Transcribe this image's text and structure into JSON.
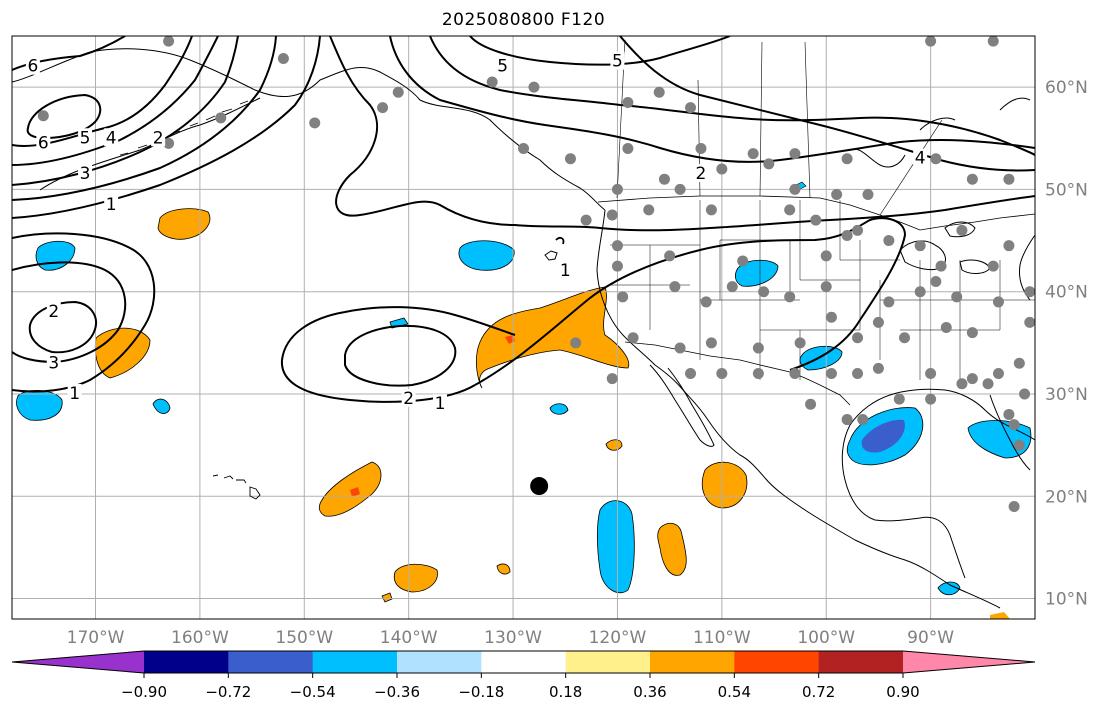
{
  "title": "2025080800 F120",
  "colors": {
    "land_line": "#000000",
    "grid_line": "#b0b0b0",
    "contour_line": "#000000",
    "station_dot": "#808080",
    "marker": "#000000"
  },
  "map": {
    "lon_range": [
      -178,
      -80
    ],
    "lat_range": [
      8,
      65
    ],
    "lon_ticks": [
      {
        "value": -170,
        "label": "170°W"
      },
      {
        "value": -160,
        "label": "160°W"
      },
      {
        "value": -150,
        "label": "150°W"
      },
      {
        "value": -140,
        "label": "140°W"
      },
      {
        "value": -130,
        "label": "130°W"
      },
      {
        "value": -120,
        "label": "120°W"
      },
      {
        "value": -110,
        "label": "110°W"
      },
      {
        "value": -100,
        "label": "100°W"
      },
      {
        "value": -90,
        "label": "90°W"
      }
    ],
    "lat_ticks": [
      {
        "value": 10,
        "label": "10°N"
      },
      {
        "value": 20,
        "label": "20°N"
      },
      {
        "value": 30,
        "label": "30°N"
      },
      {
        "value": 40,
        "label": "40°N"
      },
      {
        "value": 50,
        "label": "50°N"
      },
      {
        "value": 60,
        "label": "60°N"
      }
    ],
    "contour_labels": [
      {
        "text": "6",
        "lon": -176,
        "lat": 62.0
      },
      {
        "text": "6",
        "lon": -175,
        "lat": 54.5
      },
      {
        "text": "5",
        "lon": -171,
        "lat": 55.0
      },
      {
        "text": "4",
        "lon": -168.5,
        "lat": 55.0
      },
      {
        "text": "3",
        "lon": -171,
        "lat": 51.5
      },
      {
        "text": "2",
        "lon": -164,
        "lat": 55.0
      },
      {
        "text": "1",
        "lon": -168.5,
        "lat": 48.5
      },
      {
        "text": "2",
        "lon": -174,
        "lat": 38.0
      },
      {
        "text": "3",
        "lon": -174,
        "lat": 33.0
      },
      {
        "text": "1",
        "lon": -172,
        "lat": 30.0
      },
      {
        "text": "2",
        "lon": -140,
        "lat": 29.5
      },
      {
        "text": "1",
        "lon": -137,
        "lat": 29.0
      },
      {
        "text": "1",
        "lon": -125,
        "lat": 42.0
      },
      {
        "text": "5",
        "lon": -120,
        "lat": 62.5
      },
      {
        "text": "5",
        "lon": -131,
        "lat": 62.0
      },
      {
        "text": "2",
        "lon": -112,
        "lat": 51.5
      },
      {
        "text": "4",
        "lon": -91,
        "lat": 53.0
      }
    ],
    "marker": {
      "lon": -127.5,
      "lat": 21.0
    },
    "station_points": [
      [
        -163,
        64.5
      ],
      [
        -152,
        62.8
      ],
      [
        -141,
        59.5
      ],
      [
        -132,
        60.5
      ],
      [
        -119,
        58.5
      ],
      [
        -128,
        60
      ],
      [
        -116,
        59.5
      ],
      [
        -90,
        64.5
      ],
      [
        -84,
        64.5
      ],
      [
        -113,
        58
      ],
      [
        -142.5,
        58
      ],
      [
        -158,
        57
      ],
      [
        -149,
        56.5
      ],
      [
        -175,
        57.2
      ],
      [
        -163,
        54.5
      ],
      [
        -129,
        54
      ],
      [
        -119,
        54
      ],
      [
        -112,
        54
      ],
      [
        -107,
        53.5
      ],
      [
        -103,
        53.5
      ],
      [
        -98,
        53
      ],
      [
        -89.5,
        53
      ],
      [
        -105.5,
        52.5
      ],
      [
        -110,
        52
      ],
      [
        -115.5,
        51
      ],
      [
        -124.5,
        53
      ],
      [
        -103,
        50
      ],
      [
        -99,
        49.5
      ],
      [
        -96,
        49.5
      ],
      [
        -120,
        50
      ],
      [
        -114,
        50
      ],
      [
        -117,
        48
      ],
      [
        -111,
        48
      ],
      [
        -101,
        47
      ],
      [
        -97,
        46
      ],
      [
        -86,
        51
      ],
      [
        -82.5,
        51
      ],
      [
        -123,
        47
      ],
      [
        -120.5,
        47.5
      ],
      [
        -103.5,
        48
      ],
      [
        -98,
        45.5
      ],
      [
        -87,
        46
      ],
      [
        -91,
        44.5
      ],
      [
        -94,
        45
      ],
      [
        -120,
        44.5
      ],
      [
        -120,
        42.5
      ],
      [
        -115,
        43.5
      ],
      [
        -108,
        43
      ],
      [
        -100,
        43.5
      ],
      [
        -89,
        42.5
      ],
      [
        -84,
        42.5
      ],
      [
        -82.5,
        44.5
      ],
      [
        -119.5,
        39.5
      ],
      [
        -114.5,
        40.5
      ],
      [
        -111.5,
        39
      ],
      [
        -109,
        40.5
      ],
      [
        -106,
        40
      ],
      [
        -103.5,
        39.5
      ],
      [
        -100,
        40.5
      ],
      [
        -94,
        39
      ],
      [
        -91,
        40
      ],
      [
        -87.5,
        39.5
      ],
      [
        -83.5,
        39
      ],
      [
        -80.5,
        40
      ],
      [
        -89.5,
        41
      ],
      [
        -124,
        35
      ],
      [
        -118.5,
        35.5
      ],
      [
        -114,
        34.5
      ],
      [
        -111,
        35
      ],
      [
        -106.5,
        34.5
      ],
      [
        -102.5,
        35
      ],
      [
        -99.5,
        37.5
      ],
      [
        -97,
        35.5
      ],
      [
        -95,
        37
      ],
      [
        -92.5,
        35.5
      ],
      [
        -88.5,
        36.5
      ],
      [
        -86,
        36
      ],
      [
        -80.5,
        37
      ],
      [
        -120.5,
        31.5
      ],
      [
        -113,
        32
      ],
      [
        -110,
        32
      ],
      [
        -106.5,
        32
      ],
      [
        -103,
        32
      ],
      [
        -99.5,
        32
      ],
      [
        -97,
        32
      ],
      [
        -95,
        32.5
      ],
      [
        -90,
        32
      ],
      [
        -87,
        31
      ],
      [
        -84.5,
        31
      ],
      [
        -81,
        30
      ],
      [
        -86,
        31.5
      ],
      [
        -83.5,
        32
      ],
      [
        -81.5,
        33
      ],
      [
        -101.5,
        29
      ],
      [
        -98,
        27.5
      ],
      [
        -96.5,
        27.5
      ],
      [
        -93,
        29.5
      ],
      [
        -90,
        29.5
      ],
      [
        -82.5,
        28
      ],
      [
        -82,
        27
      ],
      [
        -81.5,
        25
      ],
      [
        -82,
        19
      ]
    ],
    "colorbar": {
      "boundaries": [
        -0.9,
        -0.72,
        -0.54,
        -0.36,
        -0.18,
        0.18,
        0.36,
        0.54,
        0.72,
        0.9
      ],
      "tick_labels": [
        "−0.90",
        "−0.72",
        "−0.54",
        "−0.36",
        "−0.18",
        "0.18",
        "0.36",
        "0.54",
        "0.72",
        "0.90"
      ],
      "colors": [
        "#9932cc",
        "#00008b",
        "#3a5fcd",
        "#00bfff",
        "#b0e2ff",
        "#ffffff",
        "#fff08c",
        "#ffa500",
        "#ff4500",
        "#b22222",
        "#ff88aa"
      ]
    }
  }
}
